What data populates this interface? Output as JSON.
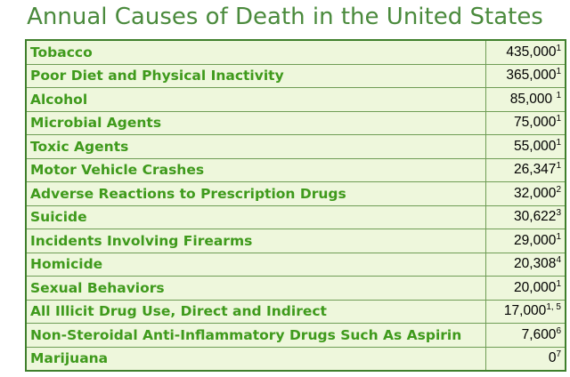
{
  "title": "Annual Causes of Death in the United States",
  "colors": {
    "title": "#4a8a3c",
    "cause_text": "#3f9a1c",
    "table_background": "#eef7dc",
    "border": "#3f7f2c"
  },
  "rows": [
    {
      "cause": "Tobacco",
      "deaths": "435,000",
      "note": "1"
    },
    {
      "cause": "Poor Diet and Physical Inactivity",
      "deaths": "365,000",
      "note": "1"
    },
    {
      "cause": "Alcohol",
      "deaths": "85,000 ",
      "note": "1"
    },
    {
      "cause": "Microbial Agents",
      "deaths": "75,000",
      "note": "1"
    },
    {
      "cause": "Toxic Agents",
      "deaths": "55,000",
      "note": "1"
    },
    {
      "cause": "Motor Vehicle Crashes",
      "deaths": "26,347",
      "note": "1"
    },
    {
      "cause": "Adverse Reactions to Prescription Drugs",
      "deaths": "32,000",
      "note": "2"
    },
    {
      "cause": "Suicide",
      "deaths": "30,622",
      "note": "3"
    },
    {
      "cause": "Incidents Involving Firearms",
      "deaths": "29,000",
      "note": "1"
    },
    {
      "cause": "Homicide",
      "deaths": "20,308",
      "note": "4"
    },
    {
      "cause": "Sexual Behaviors",
      "deaths": "20,000",
      "note": "1"
    },
    {
      "cause": "All Illicit Drug Use, Direct and Indirect",
      "deaths": "17,000",
      "note": "1, 5"
    },
    {
      "cause": "Non-Steroidal Anti-Inflammatory Drugs Such As Aspirin",
      "deaths": "7,600",
      "note": "6"
    },
    {
      "cause": "Marijuana",
      "deaths": "0",
      "note": "7"
    }
  ]
}
